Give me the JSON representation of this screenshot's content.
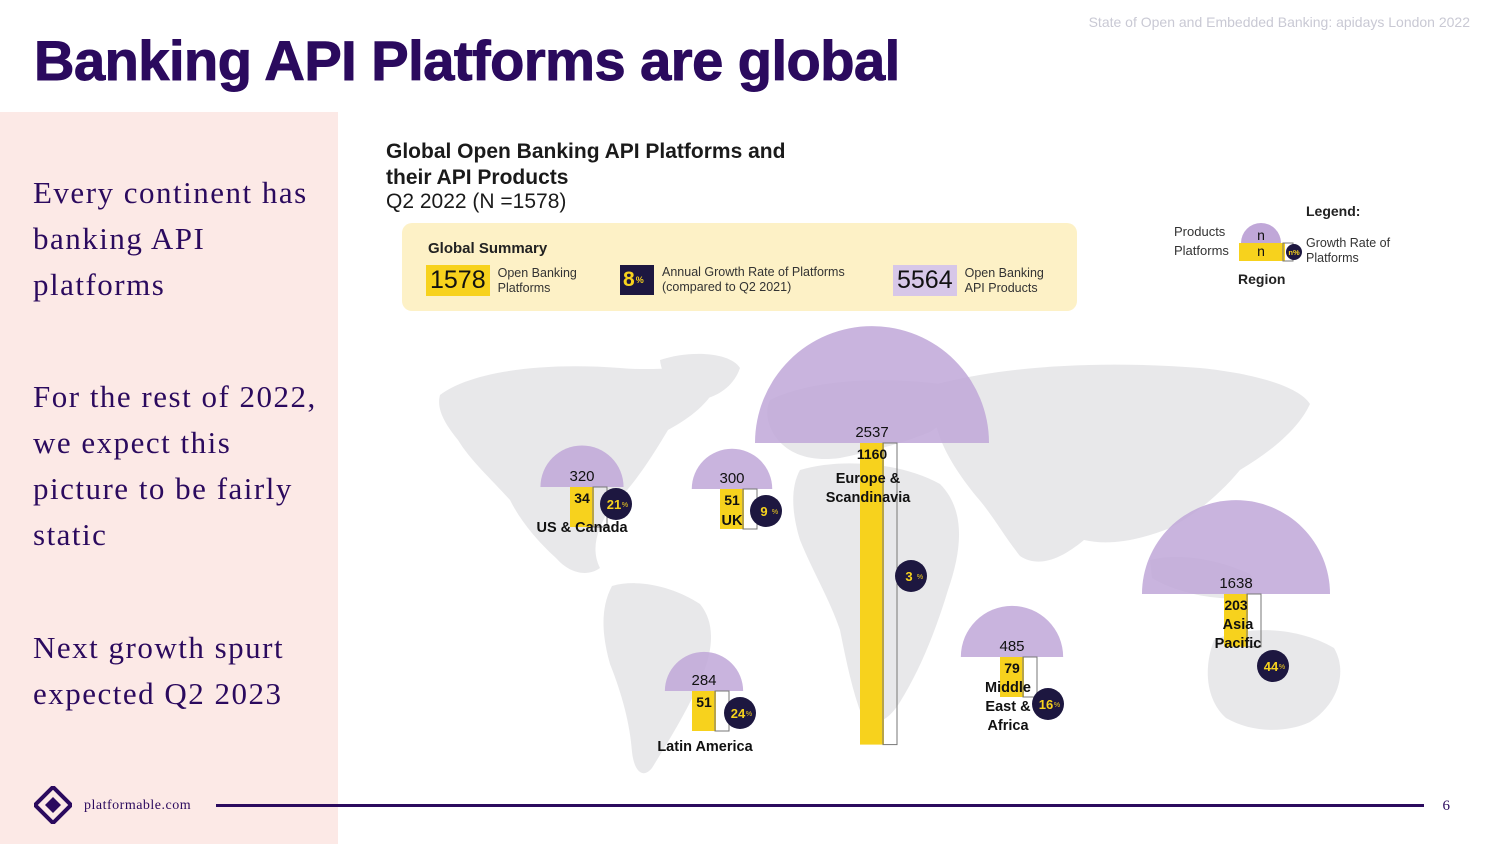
{
  "deck_label": "State of Open and Embedded Banking: apidays London 2022",
  "slide_title": "Banking API Platforms are global",
  "sidebar": {
    "block1": "Every continent has banking API platforms",
    "block2": "For the rest of 2022, we expect this picture to be fairly static",
    "block3": "Next growth spurt expected Q2 2023"
  },
  "footer": {
    "brand": "platformable.com",
    "page": "6"
  },
  "summary": {
    "title": "Global Summary",
    "platforms_value": "1578",
    "platforms_label": "Open Banking Platforms",
    "growth_value": "8",
    "growth_unit": "%",
    "growth_label": "Annual Growth Rate of Platforms (compared to Q2 2021)",
    "products_value": "5564",
    "products_label": "Open Banking API Products"
  },
  "legend": {
    "title": "Legend:",
    "products": "Products",
    "platforms": "Platforms",
    "n_symbol": "n",
    "growth_symbol": "n%",
    "growth": "Growth Rate of Platforms",
    "region": "Region"
  },
  "colors": {
    "purple": "#c0a7d8",
    "yellow": "#f7d21d",
    "navy": "#1d1740",
    "title": "#2b0a5e",
    "map": "#e6e6e8"
  },
  "chart_data": {
    "type": "bar",
    "title": "Global Open Banking API Platforms and their API Products",
    "subtitle": "Q2 2022 (N =1578)",
    "categories": [
      "US & Canada",
      "UK",
      "Europe & Scandinavia",
      "Latin America",
      "Middle East & Africa",
      "Asia Pacific"
    ],
    "series": [
      {
        "name": "Products",
        "values": [
          320,
          300,
          2537,
          284,
          485,
          1638
        ]
      },
      {
        "name": "Platforms",
        "values": [
          34,
          51,
          1160,
          51,
          79,
          203
        ]
      },
      {
        "name": "Growth Rate of Platforms",
        "values": [
          21,
          9,
          3,
          24,
          16,
          44
        ]
      }
    ]
  }
}
